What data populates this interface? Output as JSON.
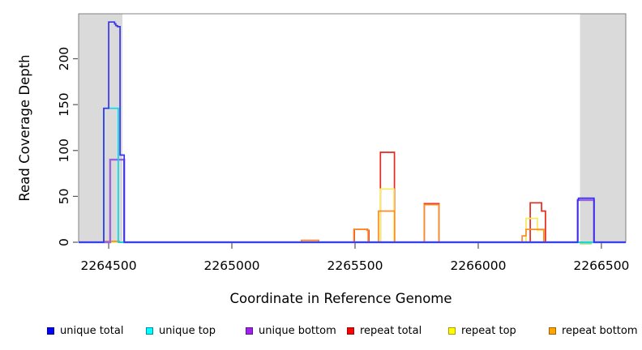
{
  "chart_data": {
    "type": "line",
    "subtype": "step-coverage",
    "title": "",
    "xlabel": "Coordinate in Reference Genome",
    "ylabel": "Read Coverage Depth",
    "xlim": [
      2264378,
      2266599
    ],
    "ylim": [
      0,
      249
    ],
    "x_ticks": [
      2264500,
      2265000,
      2265500,
      2266000,
      2266500
    ],
    "y_ticks": [
      0,
      50,
      100,
      150,
      200
    ],
    "grid": false,
    "shaded_regions": [
      {
        "from": 2264378,
        "to": 2264556,
        "color": "#dadada"
      },
      {
        "from": 2266413,
        "to": 2266599,
        "color": "#dadada"
      }
    ],
    "series": [
      {
        "name": "repeat total",
        "color": "#e8281e",
        "legend_fill": "#ff0000",
        "legend_border": "#8f0f0f",
        "width": 1.7,
        "points": [
          [
            2264378,
            0
          ],
          [
            2264487,
            1
          ],
          [
            2264543,
            0
          ],
          [
            2265283,
            2
          ],
          [
            2265352,
            0
          ],
          [
            2265497,
            14
          ],
          [
            2265551,
            13
          ],
          [
            2265556,
            0
          ],
          [
            2265603,
            98
          ],
          [
            2265660,
            0
          ],
          [
            2265781,
            42
          ],
          [
            2265841,
            0
          ],
          [
            2266211,
            43
          ],
          [
            2266257,
            34
          ],
          [
            2266273,
            0
          ],
          [
            2266599,
            0
          ]
        ]
      },
      {
        "name": "repeat top",
        "color": "#f6ec5c",
        "legend_fill": "#ffff00",
        "legend_border": "#b8960a",
        "width": 1.7,
        "points": [
          [
            2264378,
            0
          ],
          [
            2265603,
            58
          ],
          [
            2265658,
            0
          ],
          [
            2266194,
            26
          ],
          [
            2266240,
            13
          ],
          [
            2266266,
            0
          ],
          [
            2266599,
            0
          ]
        ]
      },
      {
        "name": "repeat bottom",
        "color": "#f78e2a",
        "legend_fill": "#ffa500",
        "legend_border": "#a66000",
        "width": 1.7,
        "points": [
          [
            2264378,
            0
          ],
          [
            2264487,
            1
          ],
          [
            2264543,
            0
          ],
          [
            2265283,
            2
          ],
          [
            2265352,
            0
          ],
          [
            2265495,
            14
          ],
          [
            2265548,
            13
          ],
          [
            2265553,
            0
          ],
          [
            2265595,
            34
          ],
          [
            2265661,
            0
          ],
          [
            2265781,
            41
          ],
          [
            2265841,
            0
          ],
          [
            2266178,
            7
          ],
          [
            2266194,
            14
          ],
          [
            2266266,
            0
          ],
          [
            2266599,
            0
          ]
        ]
      },
      {
        "name": "unique bottom",
        "color": "#9a63dd",
        "legend_fill": "#a020f0",
        "legend_border": "#5c1587",
        "width": 2.4,
        "points": [
          [
            2264378,
            0
          ],
          [
            2264506,
            90
          ],
          [
            2264563,
            0
          ],
          [
            2266404,
            46
          ],
          [
            2266470,
            0
          ],
          [
            2266599,
            0
          ]
        ]
      },
      {
        "name": "unique top",
        "color": "#00dce8",
        "legend_fill": "#00ffff",
        "legend_border": "#008f9e",
        "width": 1.7,
        "points": [
          [
            2264378,
            0
          ],
          [
            2264480,
            146
          ],
          [
            2264539,
            0
          ],
          [
            2266599,
            0
          ]
        ]
      },
      {
        "name": "unique total",
        "color": "#3433ee",
        "legend_fill": "#0000ff",
        "legend_border": "#000080",
        "width": 1.7,
        "points": [
          [
            2264378,
            0
          ],
          [
            2264480,
            146
          ],
          [
            2264500,
            240
          ],
          [
            2264524,
            238
          ],
          [
            2264529,
            236
          ],
          [
            2264536,
            235
          ],
          [
            2264546,
            95
          ],
          [
            2264563,
            0
          ],
          [
            2266404,
            46
          ],
          [
            2266407,
            48
          ],
          [
            2266470,
            0
          ],
          [
            2266599,
            0
          ]
        ]
      }
    ],
    "legend_order": [
      "unique total",
      "unique top",
      "unique bottom",
      "repeat total",
      "repeat top",
      "repeat bottom"
    ],
    "overlap_segment": {
      "color": "#8fdc8f",
      "from": 2266412,
      "to": 2266462
    },
    "axis_color": "#808080",
    "tick_color": "#555555"
  }
}
